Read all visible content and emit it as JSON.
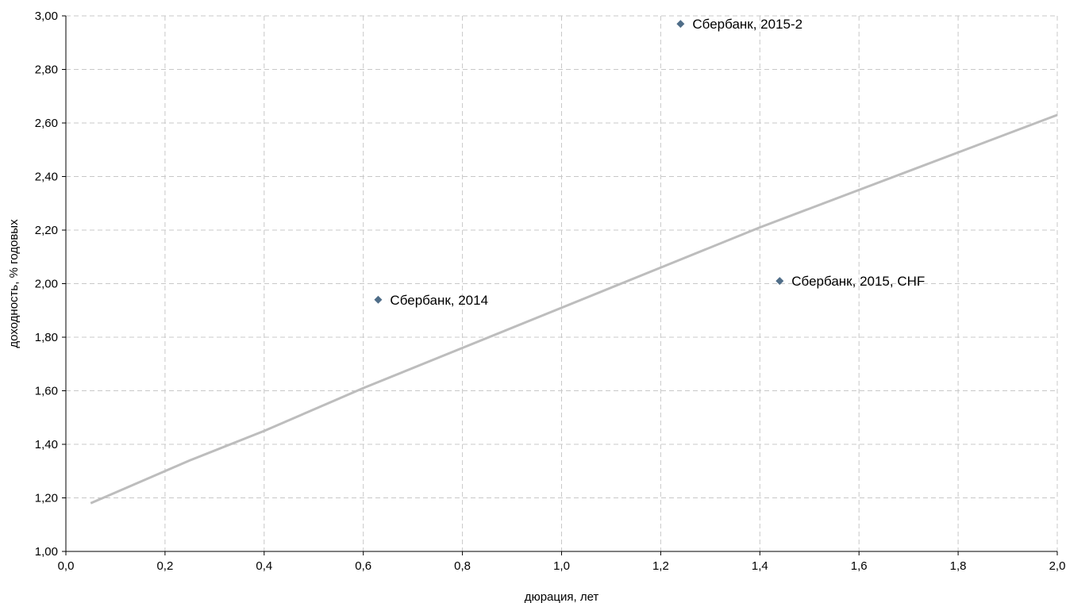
{
  "chart_data": {
    "type": "scatter",
    "title": "",
    "xlabel": "дюрация, лет",
    "ylabel": "доходность, % годовых",
    "xlim": [
      0.0,
      2.0
    ],
    "ylim": [
      1.0,
      3.0
    ],
    "x_ticks": [
      0.0,
      0.2,
      0.4,
      0.6,
      0.8,
      1.0,
      1.2,
      1.4,
      1.6,
      1.8,
      2.0
    ],
    "y_ticks": [
      1.0,
      1.2,
      1.4,
      1.6,
      1.8,
      2.0,
      2.2,
      2.4,
      2.6,
      2.8,
      3.0
    ],
    "x_tick_labels": [
      "0,0",
      "0,2",
      "0,4",
      "0,6",
      "0,8",
      "1,0",
      "1,2",
      "1,4",
      "1,6",
      "1,8",
      "2,0"
    ],
    "y_tick_labels": [
      "1,00",
      "1,20",
      "1,40",
      "1,60",
      "1,80",
      "2,00",
      "2,20",
      "2,40",
      "2,60",
      "2,80",
      "3,00"
    ],
    "grid": true,
    "legend": "none",
    "points": [
      {
        "label": "Сбербанк, 2014",
        "x": 0.63,
        "y": 1.94
      },
      {
        "label": "Сбербанк, 2015-2",
        "x": 1.24,
        "y": 2.97
      },
      {
        "label": "Сбербанк, 2015, CHF",
        "x": 1.44,
        "y": 2.01
      }
    ],
    "curve": {
      "x": [
        0.05,
        0.2,
        0.25,
        0.4,
        0.6,
        0.8,
        1.0,
        1.2,
        1.4,
        1.6,
        1.8,
        2.0
      ],
      "y": [
        1.18,
        1.3,
        1.34,
        1.45,
        1.61,
        1.76,
        1.91,
        2.06,
        2.21,
        2.35,
        2.49,
        2.63
      ]
    },
    "colors": {
      "point": "#4f6d88",
      "curve": "#bdbdbd",
      "grid": "#c8c8c8",
      "axis": "#000000"
    }
  }
}
